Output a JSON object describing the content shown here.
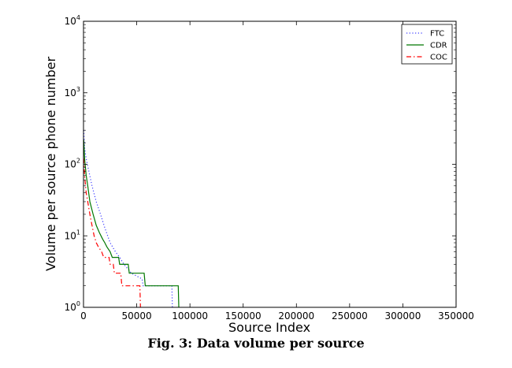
{
  "caption": "Fig. 3: Data volume per source",
  "chart_data": {
    "type": "line",
    "title": "",
    "xlabel": "Source Index",
    "ylabel": "Volume per source phone number",
    "xlim": [
      0,
      350000
    ],
    "ylim": [
      1,
      10000
    ],
    "yscale": "log",
    "x_ticks": [
      0,
      50000,
      100000,
      150000,
      200000,
      250000,
      300000,
      350000
    ],
    "y_ticks": [
      1,
      10,
      100,
      1000,
      10000
    ],
    "legend": {
      "position": "top-right"
    },
    "series": [
      {
        "name": "FTC",
        "color": "#3a3aff",
        "style": "dotted",
        "points": [
          [
            200,
            300
          ],
          [
            1000,
            170
          ],
          [
            2500,
            120
          ],
          [
            5000,
            80
          ],
          [
            8000,
            50
          ],
          [
            12000,
            30
          ],
          [
            16000,
            20
          ],
          [
            20000,
            13
          ],
          [
            25000,
            8
          ],
          [
            30000,
            6
          ],
          [
            34000,
            5
          ],
          [
            38000,
            4
          ],
          [
            45000,
            3
          ],
          [
            55000,
            2.5
          ],
          [
            56000,
            2
          ],
          [
            83000,
            2
          ],
          [
            83500,
            1
          ]
        ]
      },
      {
        "name": "CDR",
        "color": "#007700",
        "style": "solid",
        "points": [
          [
            200,
            220
          ],
          [
            1000,
            120
          ],
          [
            2500,
            70
          ],
          [
            4000,
            50
          ],
          [
            6000,
            30
          ],
          [
            9000,
            20
          ],
          [
            12000,
            14
          ],
          [
            15000,
            11
          ],
          [
            18000,
            9
          ],
          [
            20000,
            8
          ],
          [
            22000,
            7
          ],
          [
            25000,
            6
          ],
          [
            27000,
            5
          ],
          [
            33000,
            5
          ],
          [
            34000,
            4
          ],
          [
            42000,
            4
          ],
          [
            43000,
            3
          ],
          [
            57000,
            3
          ],
          [
            58000,
            2
          ],
          [
            89000,
            2
          ],
          [
            89500,
            1
          ]
        ]
      },
      {
        "name": "COC",
        "color": "#ff0000",
        "style": "dashdot",
        "points": [
          [
            200,
            120
          ],
          [
            1000,
            70
          ],
          [
            2500,
            40
          ],
          [
            4000,
            30
          ],
          [
            6000,
            20
          ],
          [
            8000,
            14
          ],
          [
            10000,
            10
          ],
          [
            12000,
            8
          ],
          [
            14000,
            7
          ],
          [
            17000,
            6
          ],
          [
            19000,
            5
          ],
          [
            24000,
            5
          ],
          [
            25000,
            4
          ],
          [
            28000,
            4
          ],
          [
            29000,
            3
          ],
          [
            35000,
            3
          ],
          [
            36000,
            2
          ],
          [
            53000,
            2
          ],
          [
            53500,
            1
          ]
        ]
      }
    ]
  }
}
